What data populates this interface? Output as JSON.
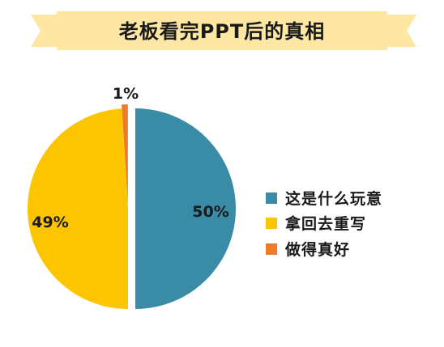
{
  "chart_data": {
    "type": "pie",
    "title": "老板看完PPT后的真相",
    "categories": [
      "这是什么玩意",
      "拿回去重写",
      "做得真好"
    ],
    "values": [
      50,
      49,
      1
    ],
    "labels": [
      "50%",
      "49%",
      "1%"
    ],
    "colors": [
      "#3a8ca6",
      "#fcc500",
      "#ee7b2a"
    ],
    "legend_position": "right",
    "banner_color": "#fde7a2"
  }
}
